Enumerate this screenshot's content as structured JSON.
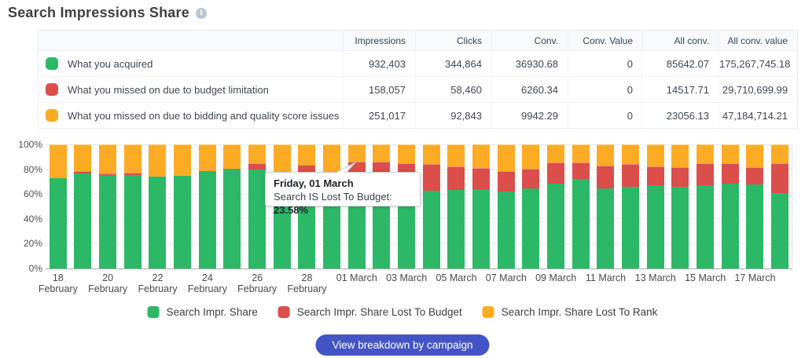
{
  "header": {
    "title": "Search Impressions Share"
  },
  "table": {
    "columns": [
      "",
      "Impressions",
      "Clicks",
      "Conv.",
      "Conv. Value",
      "All conv.",
      "All conv. value"
    ],
    "rows": [
      {
        "key": "acquired",
        "color": "#2db868",
        "label": "What you acquired",
        "values": [
          "932,403",
          "344,864",
          "36930.68",
          "0",
          "85642.07",
          "175,267,745.18"
        ]
      },
      {
        "key": "lost-budget",
        "color": "#db4e4b",
        "label": "What you missed on due to budget limitation",
        "values": [
          "158,057",
          "58,460",
          "6260.34",
          "0",
          "14517.71",
          "29,710,699.99"
        ]
      },
      {
        "key": "lost-rank",
        "color": "#fcac24",
        "label": "What you missed on due to bidding and quality score issues",
        "values": [
          "251,017",
          "92,843",
          "9942.29",
          "0",
          "23056.13",
          "47,184,714.21"
        ]
      }
    ]
  },
  "chart_data": {
    "type": "bar",
    "stacked": true,
    "normalized": "percent",
    "grid": true,
    "legend_position": "bottom",
    "ylim": [
      0,
      100
    ],
    "y_ticks": [
      "100%",
      "80%",
      "60%",
      "40%",
      "20%",
      "0%"
    ],
    "categories": [
      "18 February",
      "19 February",
      "20 February",
      "21 February",
      "22 February",
      "23 February",
      "24 February",
      "25 February",
      "26 February",
      "27 February",
      "28 February",
      "29 February",
      "01 March",
      "02 March",
      "03 March",
      "04 March",
      "05 March",
      "06 March",
      "07 March",
      "08 March",
      "09 March",
      "10 March",
      "11 March",
      "12 March",
      "13 March",
      "14 March",
      "15 March",
      "16 March",
      "17 March",
      "18 March"
    ],
    "x_tick_every": 2,
    "series": [
      {
        "name": "Search Impr. Share",
        "color": "#2db868",
        "values": [
          73,
          76.5,
          75.3,
          75.5,
          74.1,
          74.8,
          78.6,
          80.3,
          79.8,
          70,
          65,
          68,
          62.7,
          64,
          64.5,
          62.5,
          63.5,
          64,
          61.8,
          64.6,
          68.2,
          71.9,
          64.6,
          65.6,
          67.1,
          66,
          67.1,
          68.1,
          67.5,
          61
        ]
      },
      {
        "name": "Search Impr. Share Lost To Budget",
        "color": "#db4e4b",
        "values": [
          0,
          2,
          1.5,
          1.5,
          0,
          0,
          0,
          0,
          5.2,
          6,
          18.6,
          8,
          23.58,
          22.3,
          20.4,
          21.5,
          19,
          17,
          17,
          15.8,
          17,
          13.3,
          18.3,
          18.4,
          14.9,
          15.4,
          17.5,
          16.9,
          14,
          24
        ]
      },
      {
        "name": "Search Impr. Share Lost To Rank",
        "color": "#fcac24",
        "values": [
          27,
          21.5,
          23.2,
          23,
          25.9,
          25.2,
          21.4,
          19.7,
          15,
          24,
          16.4,
          24,
          13.72,
          13.7,
          15.1,
          16,
          17.5,
          19,
          21.2,
          19.6,
          14.8,
          14.8,
          17.1,
          16,
          18,
          18.6,
          15.4,
          15,
          18.5,
          15
        ]
      }
    ]
  },
  "tooltip": {
    "title": "Friday, 01 March",
    "label": "Search IS Lost To Budget: ",
    "value": "23.58%"
  },
  "legend": {
    "items": [
      {
        "label": "Search Impr. Share",
        "color": "#2db868"
      },
      {
        "label": "Search Impr. Share Lost To Budget",
        "color": "#db4e4b"
      },
      {
        "label": "Search Impr. Share Lost To Rank",
        "color": "#fcac24"
      }
    ]
  },
  "footer": {
    "button_label": "View breakdown by campaign"
  }
}
